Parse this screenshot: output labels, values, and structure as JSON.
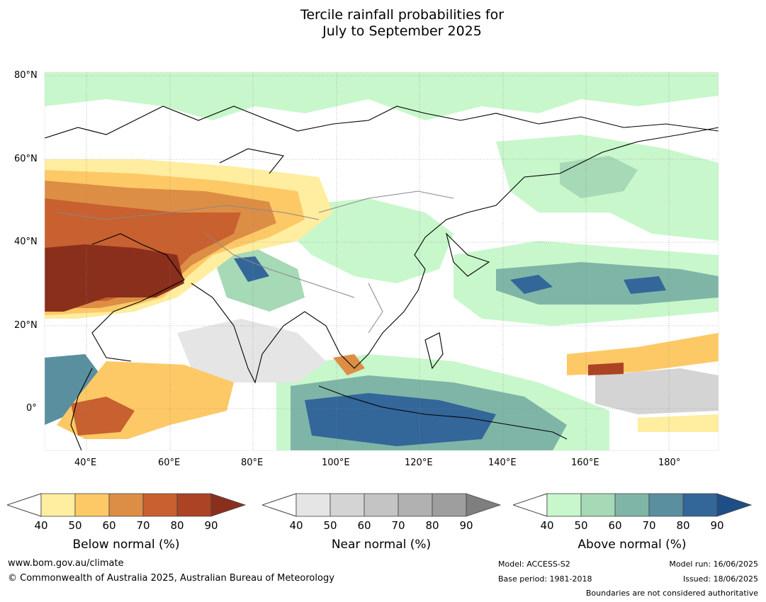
{
  "title": {
    "line1": "Tercile rainfall probabilities for",
    "line2": "July to September 2025"
  },
  "map": {
    "lat_labels": [
      "80°N",
      "60°N",
      "40°N",
      "20°N",
      "0°"
    ],
    "lon_labels": [
      "40°E",
      "60°E",
      "80°E",
      "100°E",
      "120°E",
      "140°E",
      "160°E",
      "180°"
    ]
  },
  "colorbars": [
    {
      "name": "below",
      "title": "Below normal (%)",
      "ticks": [
        "40",
        "50",
        "60",
        "70",
        "80",
        "90"
      ],
      "colors": [
        "#ffeda0",
        "#fdc966",
        "#dd8e45",
        "#c8602f",
        "#ac4324",
        "#8a2f1c"
      ]
    },
    {
      "name": "near",
      "title": "Near normal (%)",
      "ticks": [
        "40",
        "50",
        "60",
        "70",
        "80",
        "90"
      ],
      "colors": [
        "#e5e5e5",
        "#d4d4d4",
        "#c4c4c4",
        "#b1b1b1",
        "#9e9e9e",
        "#7f7f7f"
      ]
    },
    {
      "name": "above",
      "title": "Above normal (%)",
      "ticks": [
        "40",
        "50",
        "60",
        "70",
        "80",
        "90"
      ],
      "colors": [
        "#c8f7cc",
        "#a6d9b6",
        "#7fb5a6",
        "#5a8fa0",
        "#336699",
        "#1d4e86"
      ]
    }
  ],
  "footer": {
    "website": "www.bom.gov.au/climate",
    "copyright": "© Commonwealth of Australia 2025, Australian Bureau of Meteorology",
    "model": "Model: ACCESS-S2",
    "base_period": "Base period: 1981-2018",
    "model_run": "Model run: 16/06/2025",
    "issued": "Issued: 18/06/2025",
    "boundaries": "Boundaries are not considered authoritative"
  }
}
